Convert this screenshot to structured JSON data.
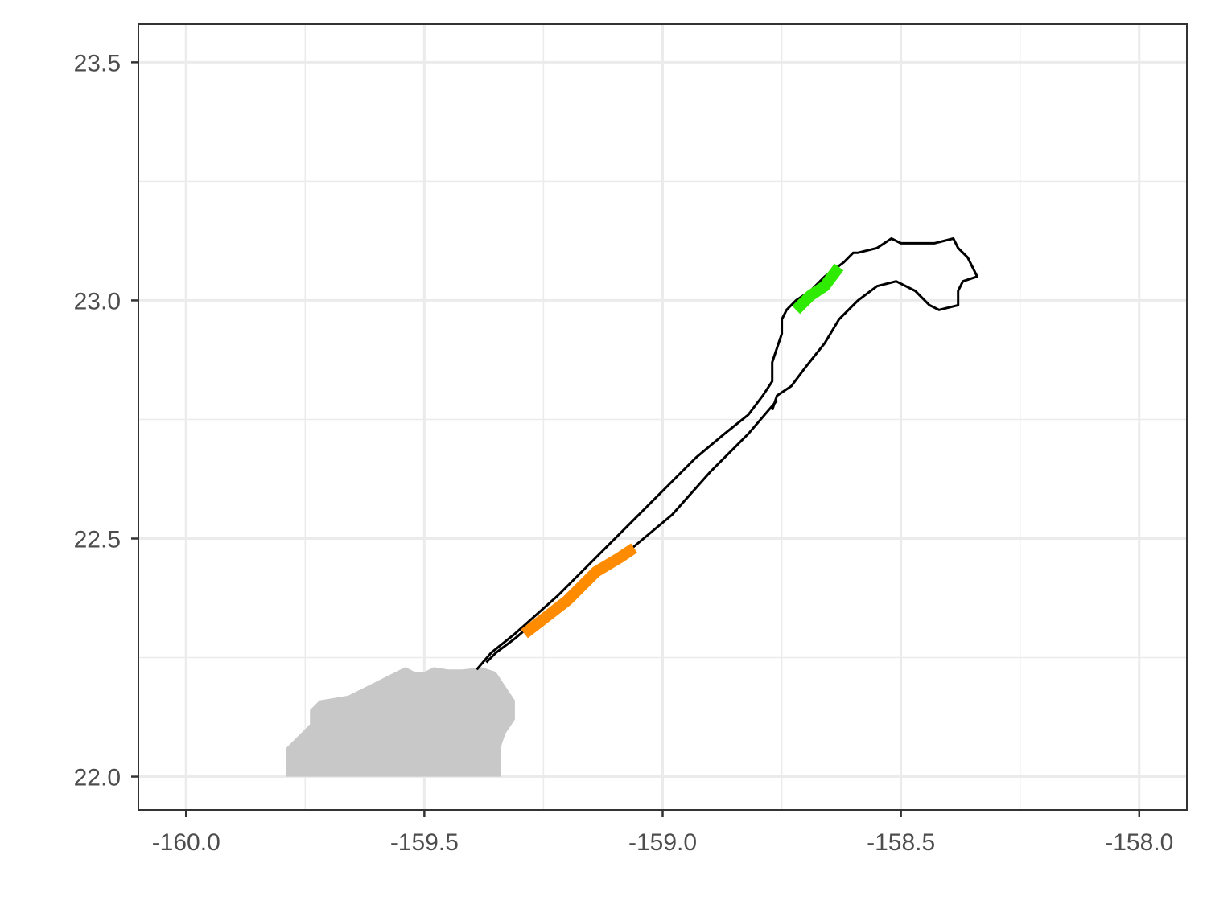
{
  "chart_data": {
    "type": "map",
    "title": "",
    "xlabel": "",
    "ylabel": "",
    "xlim": [
      -160.1,
      -157.9
    ],
    "ylim": [
      21.93,
      23.58
    ],
    "grid": true,
    "legend": "none",
    "x_ticks": [
      -160.0,
      -159.5,
      -159.0,
      -158.5,
      -158.0
    ],
    "x_tick_labels": [
      "-160.0",
      "-159.5",
      "-159.0",
      "-158.5",
      "-158.0"
    ],
    "y_ticks": [
      22.0,
      22.5,
      23.0,
      23.5
    ],
    "y_tick_labels": [
      "22.0",
      "22.5",
      "23.0",
      "23.5"
    ],
    "x_minor": [
      -159.75,
      -159.25,
      -158.75,
      -158.25
    ],
    "y_minor": [
      22.25,
      22.75,
      23.25
    ],
    "colors": {
      "land": "#c8c8c8",
      "track": "#000000",
      "segment_1": "#ff8c00",
      "segment_2": "#2eeb00"
    },
    "land": [
      [
        -159.79,
        22.0
      ],
      [
        -159.79,
        22.06
      ],
      [
        -159.76,
        22.09
      ],
      [
        -159.74,
        22.11
      ],
      [
        -159.74,
        22.14
      ],
      [
        -159.72,
        22.16
      ],
      [
        -159.66,
        22.17
      ],
      [
        -159.6,
        22.2
      ],
      [
        -159.56,
        22.22
      ],
      [
        -159.54,
        22.23
      ],
      [
        -159.52,
        22.22
      ],
      [
        -159.5,
        22.22
      ],
      [
        -159.48,
        22.23
      ],
      [
        -159.45,
        22.225
      ],
      [
        -159.42,
        22.225
      ],
      [
        -159.38,
        22.23
      ],
      [
        -159.35,
        22.22
      ],
      [
        -159.33,
        22.19
      ],
      [
        -159.31,
        22.16
      ],
      [
        -159.31,
        22.12
      ],
      [
        -159.33,
        22.09
      ],
      [
        -159.34,
        22.06
      ],
      [
        -159.34,
        22.0
      ]
    ],
    "track_outbound": [
      [
        -159.39,
        22.225
      ],
      [
        -159.36,
        22.26
      ],
      [
        -159.31,
        22.3
      ],
      [
        -159.22,
        22.38
      ],
      [
        -159.16,
        22.44
      ],
      [
        -159.09,
        22.51
      ],
      [
        -159.02,
        22.58
      ],
      [
        -158.97,
        22.63
      ],
      [
        -158.93,
        22.67
      ],
      [
        -158.87,
        22.72
      ],
      [
        -158.82,
        22.76
      ],
      [
        -158.79,
        22.8
      ],
      [
        -158.77,
        22.83
      ],
      [
        -158.77,
        22.87
      ],
      [
        -158.76,
        22.9
      ],
      [
        -158.75,
        22.93
      ],
      [
        -158.75,
        22.96
      ],
      [
        -158.74,
        22.98
      ],
      [
        -158.72,
        23.0
      ],
      [
        -158.69,
        23.02
      ],
      [
        -158.66,
        23.05
      ],
      [
        -158.62,
        23.08
      ],
      [
        -158.6,
        23.1
      ],
      [
        -158.59,
        23.1
      ],
      [
        -158.55,
        23.11
      ],
      [
        -158.52,
        23.13
      ],
      [
        -158.5,
        23.12
      ],
      [
        -158.43,
        23.12
      ],
      [
        -158.39,
        23.13
      ],
      [
        -158.38,
        23.11
      ],
      [
        -158.36,
        23.09
      ],
      [
        -158.34,
        23.05
      ],
      [
        -158.37,
        23.04
      ],
      [
        -158.38,
        23.02
      ],
      [
        -158.38,
        22.99
      ],
      [
        -158.42,
        22.98
      ],
      [
        -158.44,
        22.99
      ],
      [
        -158.47,
        23.02
      ],
      [
        -158.51,
        23.04
      ],
      [
        -158.55,
        23.03
      ],
      [
        -158.59,
        23.0
      ],
      [
        -158.63,
        22.96
      ],
      [
        -158.66,
        22.91
      ],
      [
        -158.7,
        22.86
      ],
      [
        -158.73,
        22.82
      ],
      [
        -158.76,
        22.8
      ],
      [
        -158.77,
        22.77
      ]
    ],
    "track_return": [
      [
        -158.76,
        22.79
      ],
      [
        -158.82,
        22.72
      ],
      [
        -158.9,
        22.64
      ],
      [
        -158.98,
        22.55
      ],
      [
        -159.04,
        22.5
      ],
      [
        -159.1,
        22.45
      ],
      [
        -159.17,
        22.4
      ],
      [
        -159.24,
        22.35
      ],
      [
        -159.31,
        22.29
      ],
      [
        -159.35,
        22.26
      ],
      [
        -159.37,
        22.24
      ]
    ],
    "segments": [
      {
        "points": [
          [
            -159.29,
            22.3
          ],
          [
            -159.2,
            22.37
          ],
          [
            -159.14,
            22.43
          ],
          [
            -159.09,
            22.46
          ],
          [
            -159.06,
            22.48
          ]
        ]
      },
      {
        "points": [
          [
            -158.72,
            22.98
          ],
          [
            -158.69,
            23.01
          ],
          [
            -158.66,
            23.03
          ],
          [
            -158.63,
            23.07
          ]
        ]
      }
    ]
  }
}
